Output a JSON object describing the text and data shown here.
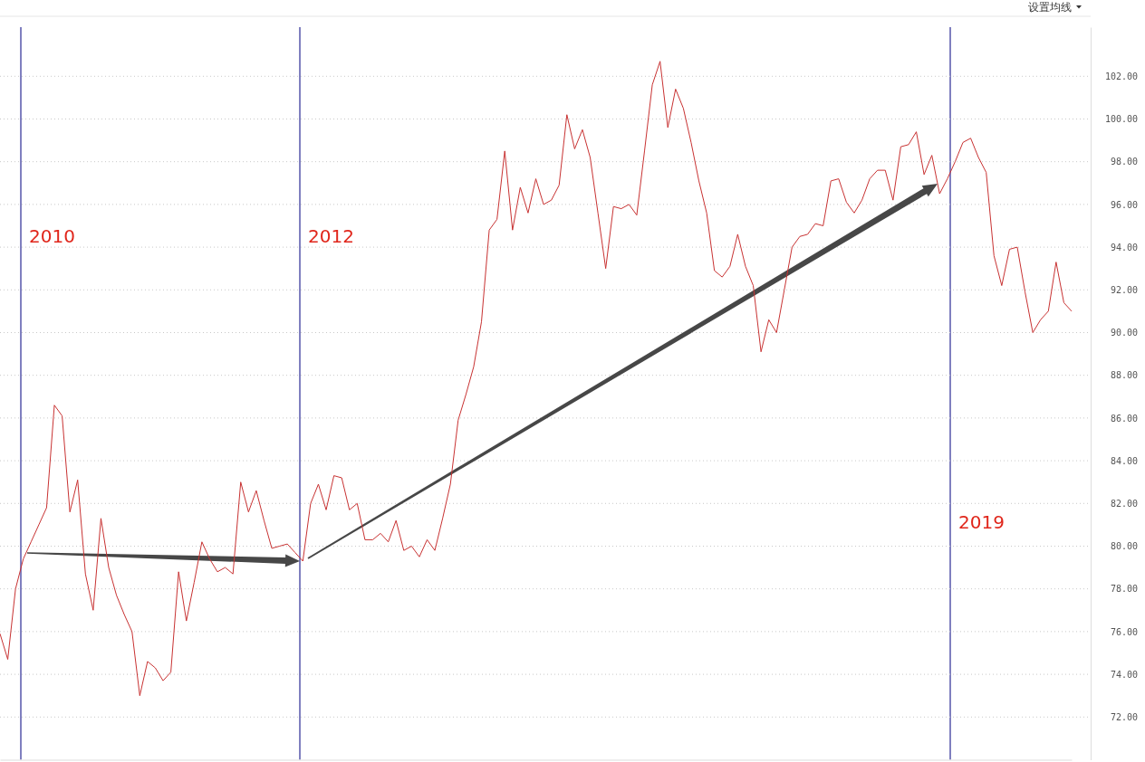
{
  "chart_data": {
    "type": "line",
    "categories": [
      null,
      null,
      null,
      null,
      null,
      null,
      null,
      null,
      null,
      null,
      null,
      null,
      null,
      null,
      null,
      null,
      null,
      null,
      null,
      null,
      null,
      null,
      null,
      null,
      null,
      null,
      null,
      null,
      null,
      null,
      null,
      null,
      null,
      null,
      null,
      null,
      null,
      null,
      null,
      null,
      null,
      null,
      null,
      null,
      null,
      null,
      null,
      null,
      null,
      null,
      null,
      null,
      null,
      null,
      null,
      null,
      null,
      null,
      null,
      null,
      null,
      null,
      null,
      null,
      null,
      null,
      null,
      null,
      null,
      null,
      null,
      null,
      null,
      null,
      null,
      null,
      null,
      null,
      null,
      null,
      null,
      null,
      null,
      null,
      null,
      null,
      null,
      null,
      null,
      null,
      null,
      null,
      null,
      null,
      null,
      null,
      null,
      null,
      null,
      null,
      null,
      null,
      null,
      null,
      null,
      null,
      null,
      null,
      null,
      null,
      null,
      null,
      null,
      null,
      null,
      null,
      null,
      null,
      null,
      null,
      null,
      null,
      null,
      null,
      null,
      null,
      null,
      null,
      null,
      null,
      null,
      null,
      null,
      null,
      null,
      null,
      null,
      null,
      null
    ],
    "series": [
      {
        "color": "#c83232",
        "values": [
          75.9,
          74.7,
          78.0,
          79.4,
          80.2,
          81.0,
          81.8,
          86.6,
          86.1,
          81.6,
          83.1,
          78.7,
          77.0,
          81.3,
          79.0,
          77.7,
          76.8,
          76.0,
          73.0,
          74.6,
          74.3,
          73.7,
          74.1,
          78.8,
          76.5,
          78.3,
          80.2,
          79.4,
          78.8,
          79.0,
          78.7,
          83.0,
          81.6,
          82.6,
          81.2,
          79.9,
          80.0,
          80.1,
          79.7,
          79.3,
          82.0,
          82.9,
          81.7,
          83.3,
          83.2,
          81.7,
          82.0,
          80.3,
          80.3,
          80.6,
          80.2,
          81.2,
          79.8,
          80.0,
          79.5,
          80.3,
          79.8,
          81.3,
          82.9,
          85.9,
          87.1,
          88.4,
          90.5,
          94.8,
          95.3,
          98.5,
          94.8,
          96.8,
          95.6,
          97.2,
          96.0,
          96.2,
          96.9,
          100.2,
          98.6,
          99.5,
          98.2,
          95.6,
          93.0,
          95.9,
          95.8,
          96.0,
          95.5,
          98.5,
          101.6,
          102.7,
          99.6,
          101.4,
          100.5,
          98.9,
          97.1,
          95.6,
          92.9,
          92.6,
          93.1,
          94.6,
          93.1,
          92.2,
          89.1,
          90.6,
          90.0,
          92.0,
          94.0,
          94.5,
          94.6,
          95.1,
          95.0,
          97.1,
          97.2,
          96.1,
          95.6,
          96.2,
          97.2,
          97.6,
          97.6,
          96.2,
          98.7,
          98.8,
          99.4,
          97.4,
          98.3,
          96.5,
          97.2,
          98.0,
          98.9,
          99.1,
          98.2,
          97.5,
          93.6,
          92.2,
          93.9,
          94.0,
          91.9,
          90.0,
          90.6,
          91.0,
          93.3,
          91.4,
          91.0
        ]
      }
    ],
    "ylim": [
      70,
      104.3
    ],
    "yticks": [
      {
        "value": 72,
        "label": "72.00"
      },
      {
        "value": 74,
        "label": "74.00"
      },
      {
        "value": 76,
        "label": "76.00"
      },
      {
        "value": 78,
        "label": "78.00"
      },
      {
        "value": 80,
        "label": "80.00"
      },
      {
        "value": 82,
        "label": "82.00"
      },
      {
        "value": 84,
        "label": "84.00"
      },
      {
        "value": 86,
        "label": "86.00"
      },
      {
        "value": 88,
        "label": "88.00"
      },
      {
        "value": 90,
        "label": "90.00"
      },
      {
        "value": 92,
        "label": "92.00"
      },
      {
        "value": 94,
        "label": "94.00"
      },
      {
        "value": 96,
        "label": "96.00"
      },
      {
        "value": 98,
        "label": "98.00"
      },
      {
        "value": 100,
        "label": "100.00"
      },
      {
        "value": 102,
        "label": "102.00"
      }
    ],
    "tick_labels": "y",
    "grid": "y",
    "marker": "none",
    "line_style": "solid",
    "annotations": [
      "设置均线",
      "2010",
      "2012",
      "2019"
    ]
  }
}
